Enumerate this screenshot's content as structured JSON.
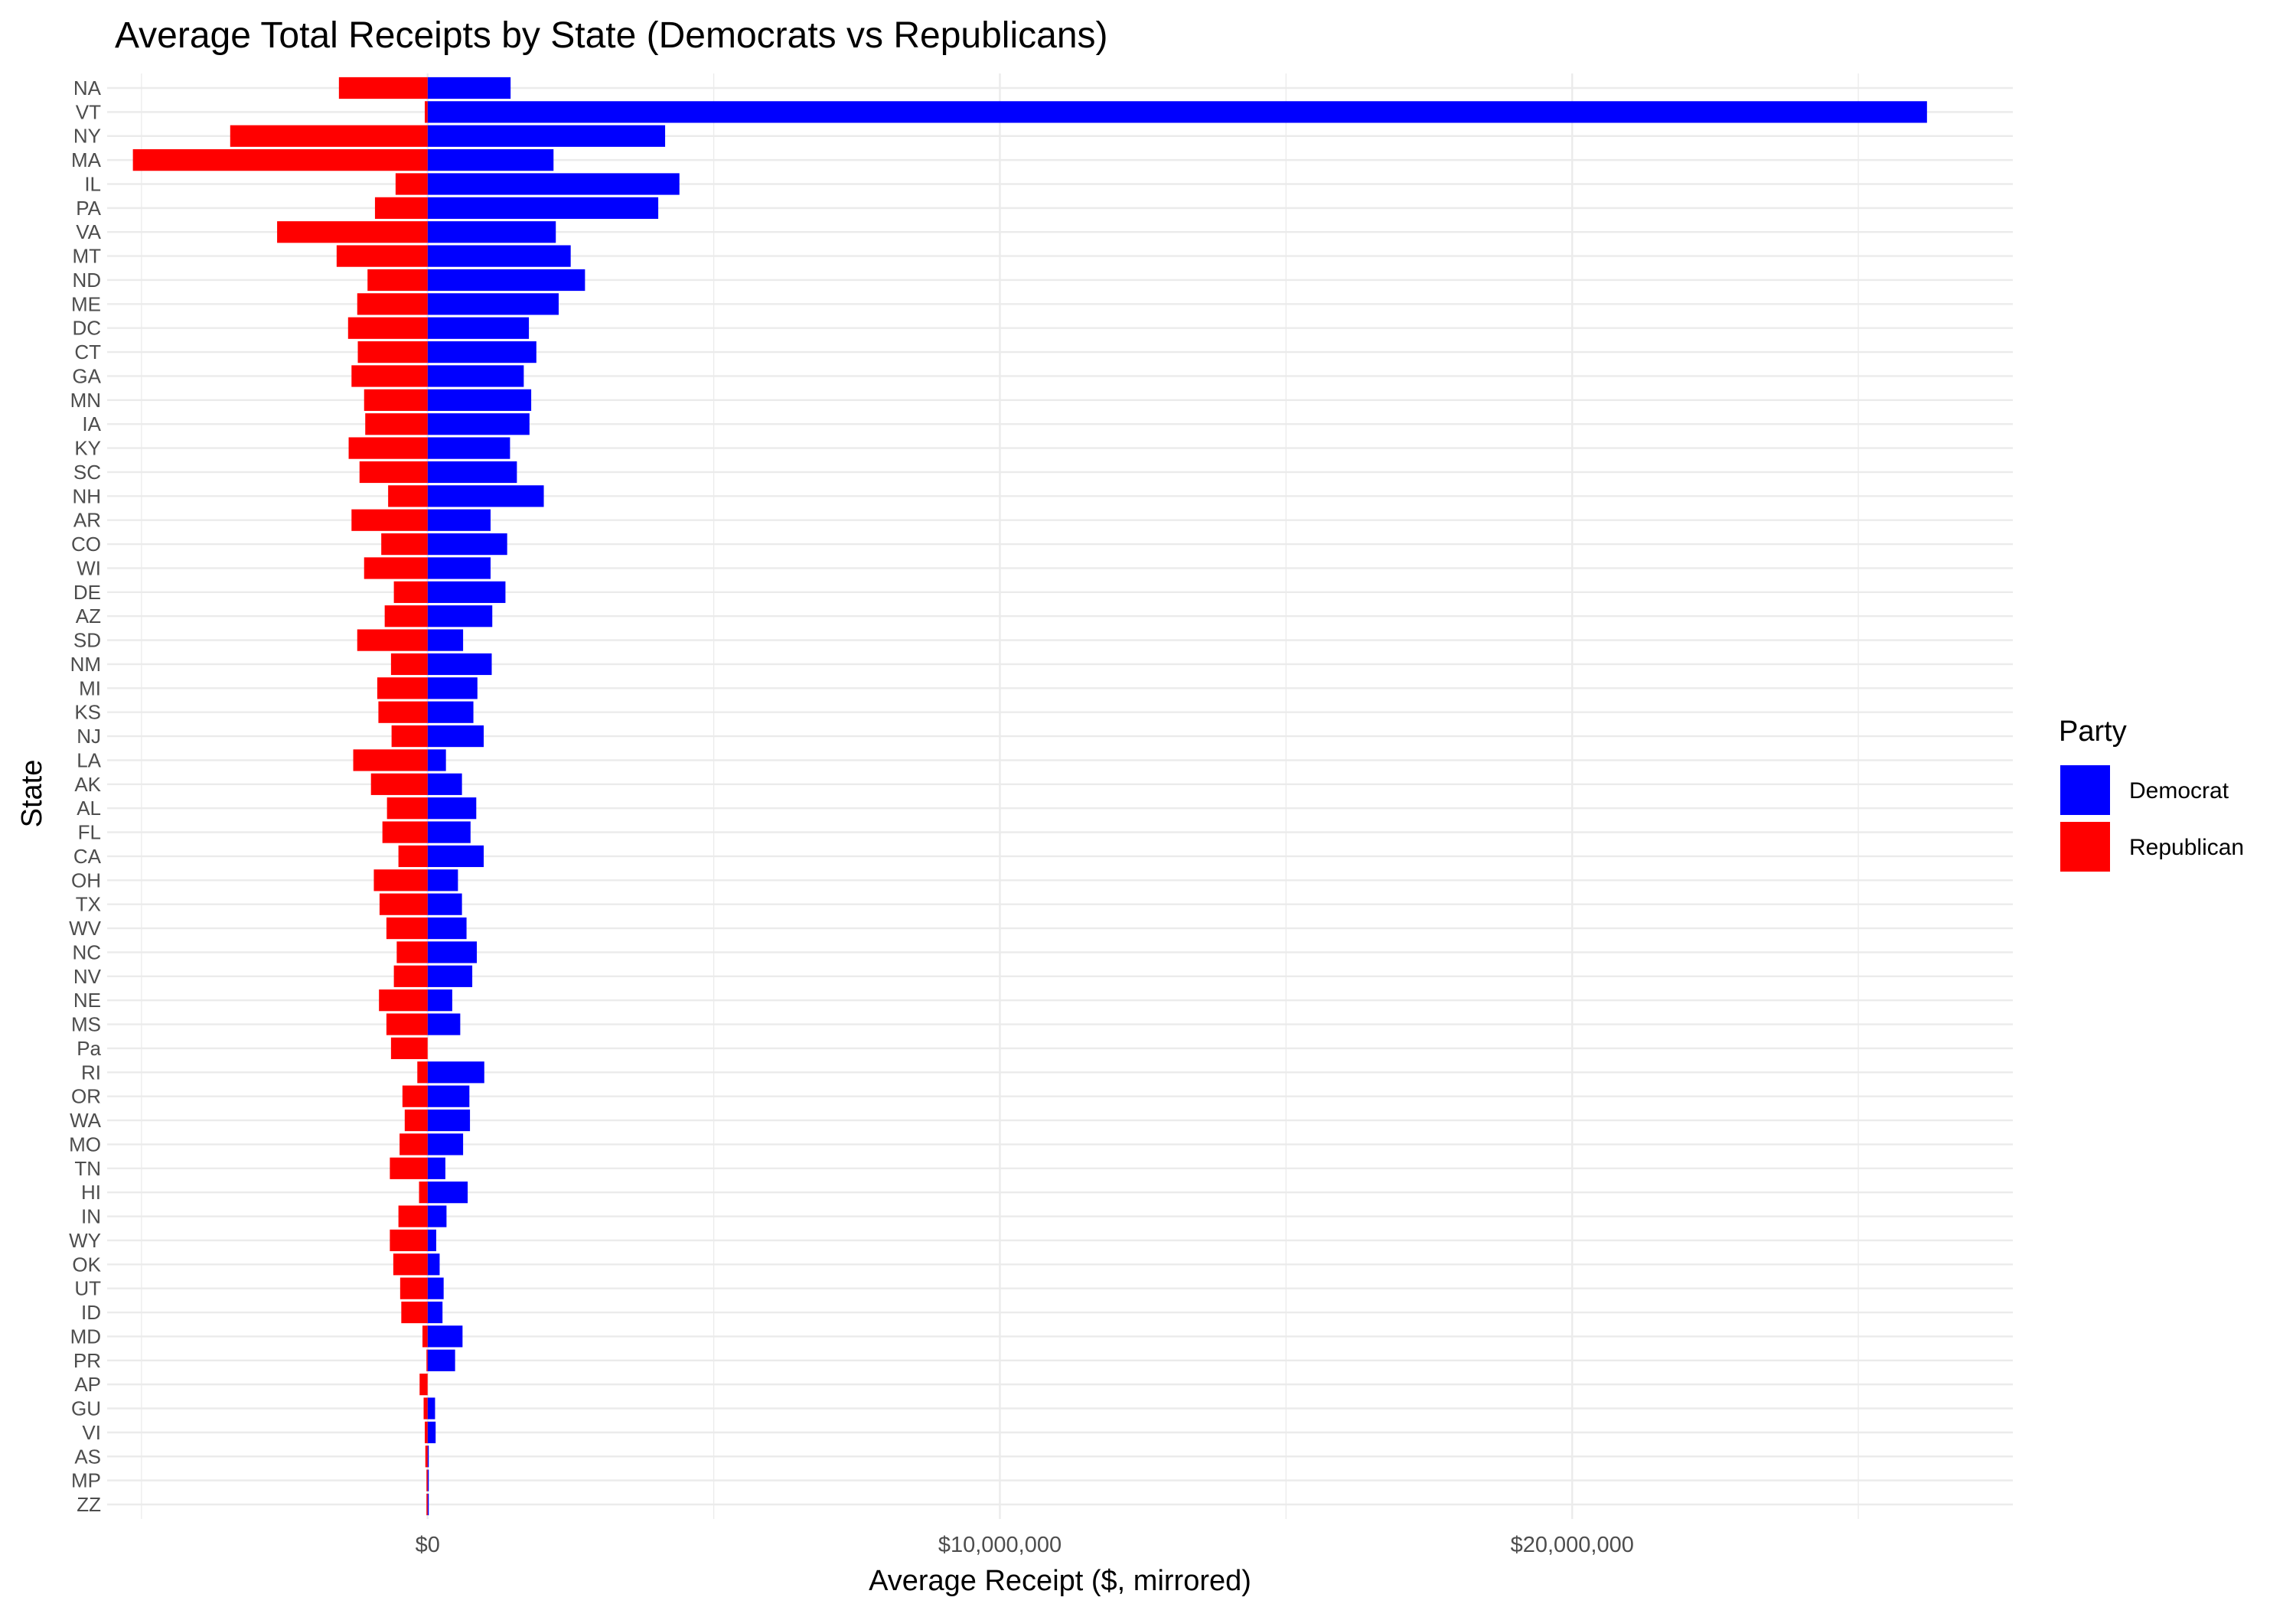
{
  "chart_data": {
    "type": "bar",
    "orientation": "horizontal",
    "title": "Average Total Receipts by State (Democrats vs Republicans)",
    "xlabel": "Average Receipt ($, mirrored)",
    "ylabel": "State",
    "xlim": [
      -5600000,
      27700000
    ],
    "x_ticks": [
      {
        "value": 0,
        "label": "$0"
      },
      {
        "value": 10000000,
        "label": "$10,000,000"
      },
      {
        "value": 20000000,
        "label": "$20,000,000"
      }
    ],
    "grid": true,
    "legend": {
      "title": "Party",
      "position": "right"
    },
    "categories": [
      "NA",
      "VT",
      "NY",
      "MA",
      "IL",
      "PA",
      "VA",
      "MT",
      "ND",
      "ME",
      "DC",
      "CT",
      "GA",
      "MN",
      "IA",
      "KY",
      "SC",
      "NH",
      "AR",
      "CO",
      "WI",
      "DE",
      "AZ",
      "SD",
      "NM",
      "MI",
      "KS",
      "NJ",
      "LA",
      "AK",
      "AL",
      "FL",
      "CA",
      "OH",
      "TX",
      "WV",
      "NC",
      "NV",
      "NE",
      "MS",
      "Pa",
      "RI",
      "OR",
      "WA",
      "MO",
      "TN",
      "HI",
      "IN",
      "WY",
      "OK",
      "UT",
      "ID",
      "MD",
      "PR",
      "AP",
      "GU",
      "VI",
      "AS",
      "MP",
      "ZZ"
    ],
    "series": [
      {
        "name": "Democrat",
        "color": "#0000FF",
        "values": [
          1450000,
          26200000,
          4150000,
          2200000,
          4400000,
          4030000,
          2240000,
          2500000,
          2750000,
          2290000,
          1770000,
          1900000,
          1680000,
          1810000,
          1780000,
          1440000,
          1560000,
          2030000,
          1100000,
          1390000,
          1100000,
          1360000,
          1130000,
          620000,
          1120000,
          870000,
          800000,
          980000,
          320000,
          600000,
          850000,
          750000,
          980000,
          530000,
          600000,
          680000,
          860000,
          780000,
          430000,
          570000,
          0,
          990000,
          730000,
          740000,
          620000,
          310000,
          700000,
          330000,
          150000,
          210000,
          280000,
          260000,
          610000,
          480000,
          0,
          130000,
          140000,
          20000,
          20000,
          20000
        ]
      },
      {
        "name": "Republican",
        "color": "#FF0000",
        "values": [
          -1550000,
          -50000,
          -3450000,
          -5150000,
          -560000,
          -920000,
          -2630000,
          -1590000,
          -1050000,
          -1230000,
          -1390000,
          -1220000,
          -1330000,
          -1110000,
          -1090000,
          -1380000,
          -1190000,
          -690000,
          -1330000,
          -810000,
          -1110000,
          -590000,
          -750000,
          -1230000,
          -640000,
          -880000,
          -860000,
          -630000,
          -1300000,
          -990000,
          -710000,
          -790000,
          -510000,
          -940000,
          -840000,
          -720000,
          -540000,
          -590000,
          -850000,
          -720000,
          -640000,
          -180000,
          -440000,
          -400000,
          -490000,
          -660000,
          -150000,
          -510000,
          -660000,
          -600000,
          -480000,
          -460000,
          -90000,
          -20000,
          -140000,
          -70000,
          -50000,
          -40000,
          -20000,
          -20000
        ]
      }
    ]
  }
}
